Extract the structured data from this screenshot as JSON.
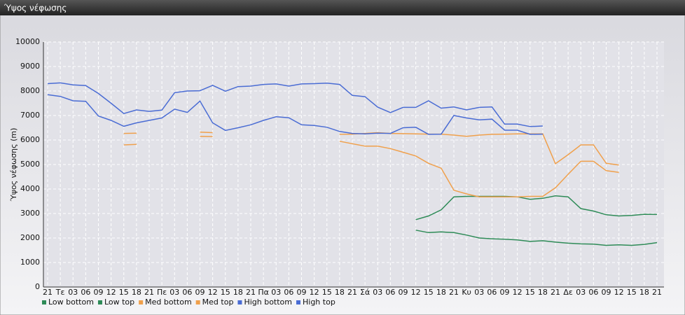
{
  "chart_data": {
    "type": "line",
    "title": "Ύψος νέφωσης",
    "y_label": "Ύψος νέφωσης (m)",
    "categories": [
      "21",
      "Τε",
      "03",
      "06",
      "09",
      "12",
      "15",
      "18",
      "21",
      "Πε",
      "03",
      "06",
      "09",
      "12",
      "15",
      "18",
      "21",
      "Πα",
      "03",
      "06",
      "09",
      "12",
      "15",
      "18",
      "21",
      "Σά",
      "03",
      "06",
      "09",
      "12",
      "15",
      "18",
      "21",
      "Κυ",
      "03",
      "06",
      "09",
      "12",
      "15",
      "18",
      "21",
      "Δε",
      "03",
      "06",
      "09",
      "12",
      "15",
      "18",
      "21"
    ],
    "ylim": [
      0,
      10000
    ],
    "yticks": [
      0,
      1000,
      2000,
      3000,
      4000,
      5000,
      6000,
      7000,
      8000,
      9000,
      10000
    ],
    "grid": true,
    "series": [
      {
        "name": "Low bottom",
        "color": "#2e8b57",
        "values": [
          null,
          null,
          null,
          null,
          null,
          null,
          null,
          null,
          null,
          null,
          null,
          null,
          null,
          null,
          null,
          null,
          null,
          null,
          null,
          null,
          null,
          null,
          null,
          null,
          null,
          null,
          null,
          null,
          null,
          2320,
          2220,
          2250,
          2220,
          2120,
          2000,
          1970,
          1950,
          1920,
          1860,
          1890,
          1830,
          1790,
          1760,
          1750,
          1700,
          1720,
          1700,
          1740,
          1810
        ]
      },
      {
        "name": "Low top",
        "color": "#2e8b57",
        "values": [
          null,
          null,
          null,
          null,
          null,
          null,
          null,
          null,
          null,
          null,
          null,
          null,
          null,
          null,
          null,
          null,
          null,
          null,
          null,
          null,
          null,
          null,
          null,
          null,
          null,
          null,
          null,
          null,
          null,
          2750,
          2900,
          3150,
          3680,
          3700,
          3700,
          3700,
          3700,
          3680,
          3580,
          3620,
          3720,
          3680,
          3200,
          3100,
          2950,
          2900,
          2920,
          2970,
          2960
        ]
      },
      {
        "name": "Med bottom",
        "color": "#f0a04b",
        "values": [
          null,
          null,
          null,
          null,
          null,
          null,
          5800,
          5820,
          null,
          null,
          null,
          null,
          6150,
          6140,
          null,
          null,
          null,
          null,
          null,
          null,
          null,
          null,
          null,
          5950,
          5850,
          5750,
          5750,
          5650,
          5500,
          5350,
          5050,
          4850,
          3950,
          3800,
          3680,
          3680,
          3680,
          3680,
          3700,
          3700,
          4050,
          4600,
          5130,
          5130,
          4750,
          4680,
          null,
          null,
          null
        ]
      },
      {
        "name": "Med top",
        "color": "#f0a04b",
        "values": [
          null,
          null,
          null,
          null,
          null,
          null,
          6270,
          6280,
          null,
          null,
          null,
          null,
          6320,
          6300,
          null,
          null,
          null,
          null,
          null,
          null,
          null,
          null,
          null,
          6230,
          6240,
          6270,
          6300,
          6270,
          6260,
          6250,
          6240,
          6240,
          6200,
          6150,
          6200,
          6230,
          6240,
          6250,
          6250,
          6250,
          5030,
          5400,
          5800,
          5800,
          5050,
          4980,
          null,
          null,
          null
        ]
      },
      {
        "name": "High bottom",
        "color": "#4a6cd4",
        "values": [
          7850,
          7780,
          7600,
          7580,
          6980,
          6800,
          6560,
          6700,
          6800,
          6900,
          7260,
          7130,
          7590,
          6700,
          6390,
          6500,
          6620,
          6800,
          6950,
          6910,
          6620,
          6590,
          6520,
          6350,
          6270,
          6250,
          6280,
          6270,
          6500,
          6520,
          6230,
          6240,
          7000,
          6900,
          6820,
          6850,
          6400,
          6400,
          6230,
          6240,
          null,
          null,
          null,
          null,
          null,
          null,
          null,
          null,
          null
        ]
      },
      {
        "name": "High top",
        "color": "#4a6cd4",
        "values": [
          8300,
          8330,
          8250,
          8220,
          7900,
          7500,
          7080,
          7230,
          7170,
          7220,
          7930,
          8000,
          8010,
          8230,
          7990,
          8180,
          8200,
          8270,
          8290,
          8200,
          8290,
          8300,
          8320,
          8270,
          7820,
          7770,
          7340,
          7120,
          7330,
          7330,
          7600,
          7300,
          7350,
          7230,
          7330,
          7350,
          6650,
          6650,
          6550,
          6570,
          null,
          null,
          null,
          null,
          null,
          null,
          null,
          null,
          null
        ]
      }
    ]
  }
}
